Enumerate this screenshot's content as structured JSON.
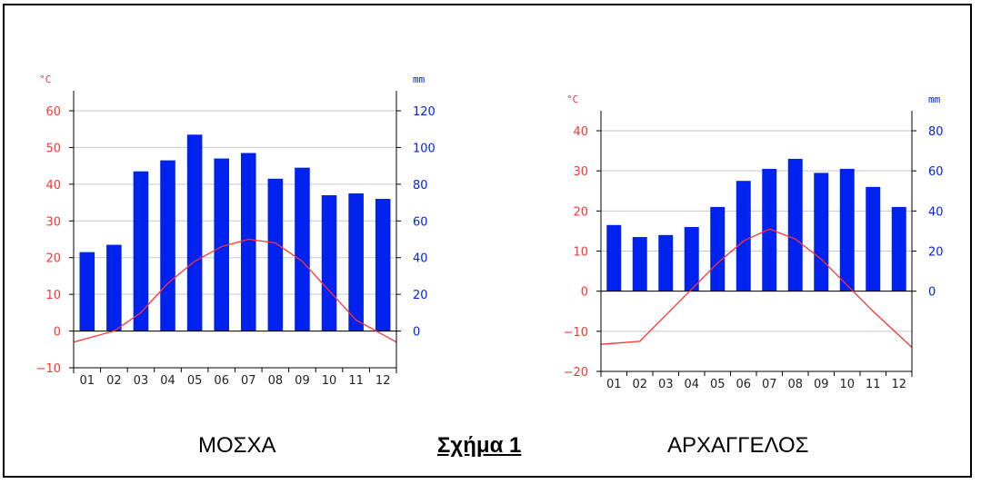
{
  "figure_label": "Σχήμα 1",
  "colors": {
    "temperature": "#ff3333",
    "precipitation": "#0022ee",
    "bars": "#0022ee",
    "grid": "#c8c8c8",
    "axis": "#000000"
  },
  "chart_data": [
    {
      "type": "bar",
      "caption": "ΜΟΣΧΑ",
      "temp_unit": "°C",
      "precip_unit": "mm",
      "categories": [
        "01",
        "02",
        "03",
        "04",
        "05",
        "06",
        "07",
        "08",
        "09",
        "10",
        "11",
        "12"
      ],
      "temp_ticks": [
        -10,
        0,
        10,
        20,
        30,
        40,
        50,
        60
      ],
      "precip_ticks": [
        0,
        20,
        40,
        60,
        80,
        100,
        120
      ],
      "temp_range": [
        -10,
        60
      ],
      "precip_range": [
        -20,
        120
      ],
      "grid": true,
      "series": [
        {
          "name": "mm",
          "type": "bar",
          "axis": "right",
          "values": [
            43,
            47,
            87,
            93,
            107,
            94,
            97,
            83,
            89,
            74,
            75,
            72
          ]
        },
        {
          "name": "°C",
          "type": "line",
          "axis": "left",
          "values": [
            -2,
            0,
            5,
            13,
            19,
            23,
            25,
            24,
            19,
            11,
            3,
            -1
          ]
        }
      ]
    },
    {
      "type": "bar",
      "caption": "ΑΡΧΑΓΓΕΛΟΣ",
      "temp_unit": "°C",
      "precip_unit": "mm",
      "categories": [
        "01",
        "02",
        "03",
        "04",
        "05",
        "06",
        "07",
        "08",
        "09",
        "10",
        "11",
        "12"
      ],
      "temp_ticks": [
        -20,
        -10,
        0,
        10,
        20,
        30,
        40
      ],
      "precip_ticks": [
        0,
        20,
        40,
        60,
        80
      ],
      "temp_range": [
        -20,
        40
      ],
      "precip_range": [
        -40,
        80
      ],
      "grid": true,
      "series": [
        {
          "name": "mm",
          "type": "bar",
          "axis": "right",
          "values": [
            33,
            27,
            28,
            32,
            42,
            55,
            61,
            66,
            59,
            61,
            52,
            42
          ]
        },
        {
          "name": "°C",
          "type": "line",
          "axis": "left",
          "values": [
            -13,
            -12.5,
            -6,
            0.5,
            7,
            12.5,
            15.5,
            13,
            8,
            1.5,
            -5,
            -11
          ]
        }
      ]
    }
  ]
}
